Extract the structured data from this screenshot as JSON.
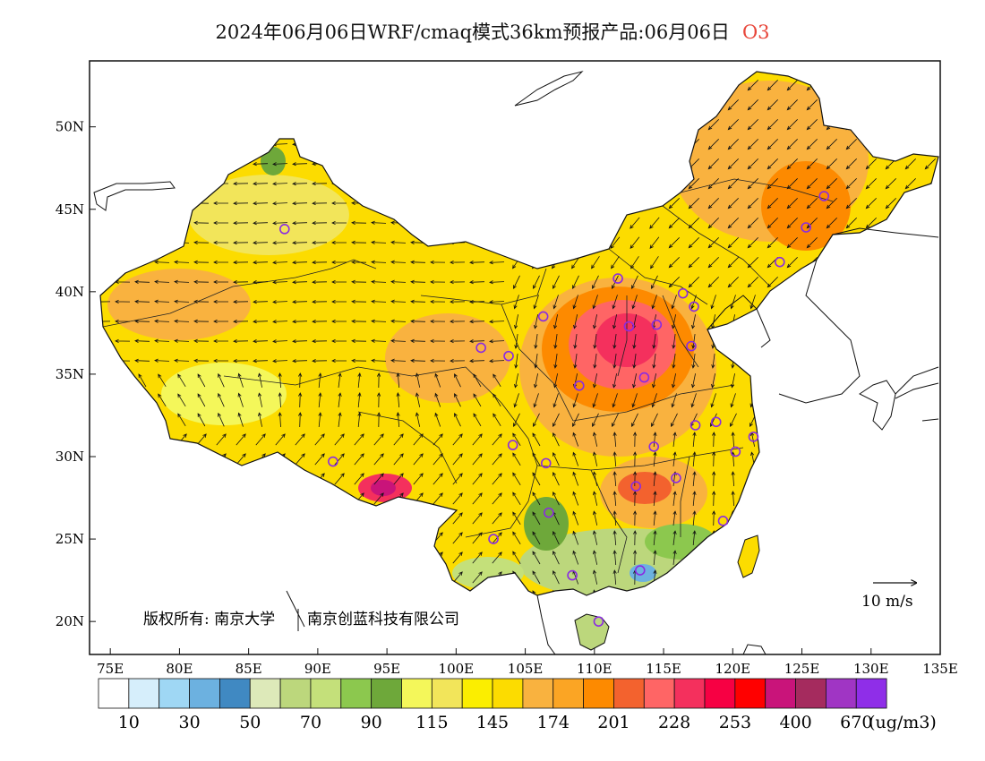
{
  "title": {
    "main": "2024年06月06日WRF/cmaq模式36km预报产品:06月06日",
    "species": "O3"
  },
  "axes": {
    "lat_labels": [
      "50N",
      "45N",
      "40N",
      "35N",
      "30N",
      "25N",
      "20N"
    ],
    "lon_labels": [
      "75E",
      "80E",
      "85E",
      "90E",
      "95E",
      "100E",
      "105E",
      "110E",
      "115E",
      "120E",
      "125E",
      "130E",
      "135E"
    ]
  },
  "copyright": {
    "left": "版权所有: 南京大学",
    "right": "南京创蓝科技有限公司"
  },
  "wind_reference": "10 m/s",
  "legend": {
    "colors": [
      "#ffffff",
      "#d6eefb",
      "#9fd7f4",
      "#6cb1e0",
      "#4089c2",
      "#dde9b9",
      "#bcd77c",
      "#c4e07a",
      "#8cc84e",
      "#6ea83a",
      "#f4f75a",
      "#f2e55a",
      "#fbee00",
      "#fcdc00",
      "#f9b23f",
      "#fba524",
      "#fd8a00",
      "#f3622e",
      "#ff6565",
      "#f4305d",
      "#f70043",
      "#ff0000",
      "#c9147a",
      "#a52b5e",
      "#a035c4",
      "#8f2ee8"
    ],
    "labels": [
      "10",
      "30",
      "50",
      "70",
      "90",
      "115",
      "145",
      "174",
      "201",
      "228",
      "253",
      "400",
      "670"
    ],
    "unit": "(ug/m3)"
  },
  "cities": [
    {
      "lon": 87.6,
      "lat": 43.8
    },
    {
      "lon": 91.1,
      "lat": 29.7
    },
    {
      "lon": 101.8,
      "lat": 36.6
    },
    {
      "lon": 103.8,
      "lat": 36.1
    },
    {
      "lon": 106.3,
      "lat": 38.5
    },
    {
      "lon": 111.7,
      "lat": 40.8
    },
    {
      "lon": 112.5,
      "lat": 37.9
    },
    {
      "lon": 114.5,
      "lat": 38.0
    },
    {
      "lon": 116.4,
      "lat": 39.9
    },
    {
      "lon": 117.2,
      "lat": 39.1
    },
    {
      "lon": 117.0,
      "lat": 36.7
    },
    {
      "lon": 113.6,
      "lat": 34.8
    },
    {
      "lon": 108.9,
      "lat": 34.3
    },
    {
      "lon": 104.1,
      "lat": 30.7
    },
    {
      "lon": 106.5,
      "lat": 29.6
    },
    {
      "lon": 114.3,
      "lat": 30.6
    },
    {
      "lon": 117.3,
      "lat": 31.9
    },
    {
      "lon": 118.8,
      "lat": 32.1
    },
    {
      "lon": 121.5,
      "lat": 31.2
    },
    {
      "lon": 120.2,
      "lat": 30.3
    },
    {
      "lon": 115.9,
      "lat": 28.7
    },
    {
      "lon": 113.0,
      "lat": 28.2
    },
    {
      "lon": 119.3,
      "lat": 26.1
    },
    {
      "lon": 106.7,
      "lat": 26.6
    },
    {
      "lon": 102.7,
      "lat": 25.0
    },
    {
      "lon": 108.4,
      "lat": 22.8
    },
    {
      "lon": 113.3,
      "lat": 23.1
    },
    {
      "lon": 110.3,
      "lat": 20.0
    },
    {
      "lon": 123.4,
      "lat": 41.8
    },
    {
      "lon": 125.3,
      "lat": 43.9
    },
    {
      "lon": 126.6,
      "lat": 45.8
    }
  ]
}
